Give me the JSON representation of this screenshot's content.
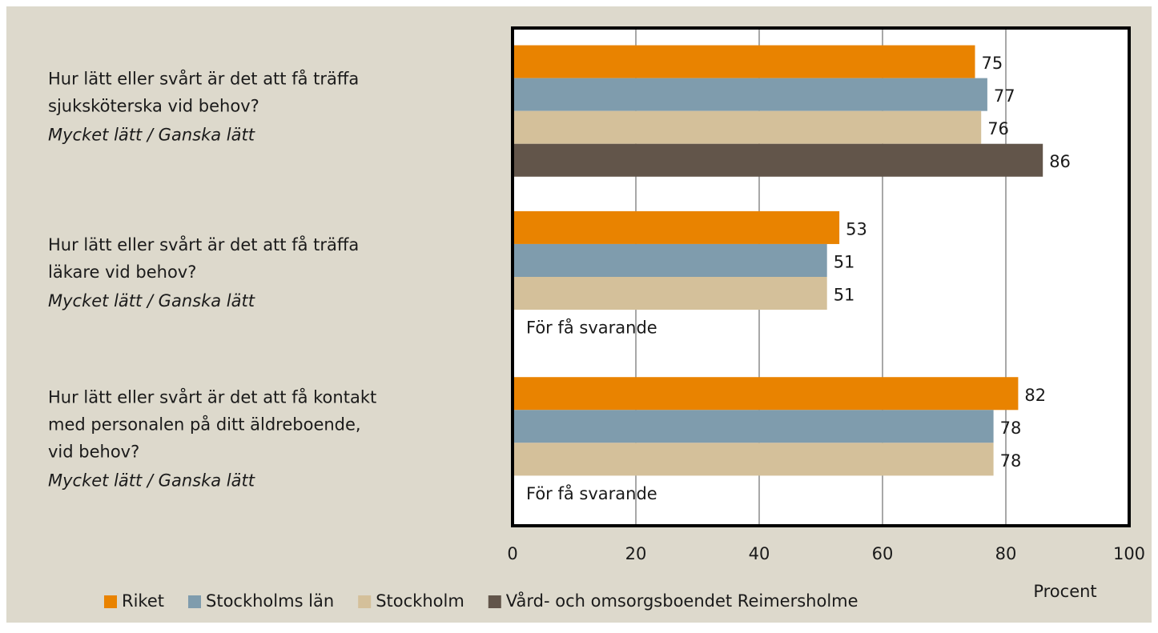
{
  "chart_data": {
    "type": "hbar",
    "categories": [
      [
        "Hur lätt eller svårt är det att få träffa",
        "sjuksköterska vid behov?"
      ],
      [
        "Hur lätt eller svårt är det att få träffa",
        "läkare vid behov?"
      ],
      [
        "Hur lätt eller svårt är det att få kontakt",
        "med personalen på ditt äldreboende,",
        "vid behov?"
      ]
    ],
    "category_notes": [
      "Mycket lätt / Ganska lätt",
      "Mycket lätt / Ganska lätt",
      "Mycket lätt / Ganska lätt"
    ],
    "series": [
      {
        "name": "Riket",
        "color": "#e98300",
        "values": [
          75,
          53,
          82
        ]
      },
      {
        "name": "Stockholms län",
        "color": "#7f9cad",
        "values": [
          77,
          51,
          78
        ]
      },
      {
        "name": "Stockholm",
        "color": "#d4c09a",
        "values": [
          76,
          51,
          78
        ]
      },
      {
        "name": "Vård- och omsorgsboendet Reimersholme",
        "color": "#62554a",
        "values": [
          86,
          null,
          null
        ]
      }
    ],
    "annotations": [
      {
        "text": "För få svarande",
        "category": 1,
        "series": 3
      },
      {
        "text": "För få svarande",
        "category": 2,
        "series": 3
      }
    ],
    "xlabel": "Procent",
    "xlim": [
      0,
      100
    ],
    "xticks": [
      0,
      20,
      40,
      60,
      80,
      100
    ],
    "grid": true
  }
}
